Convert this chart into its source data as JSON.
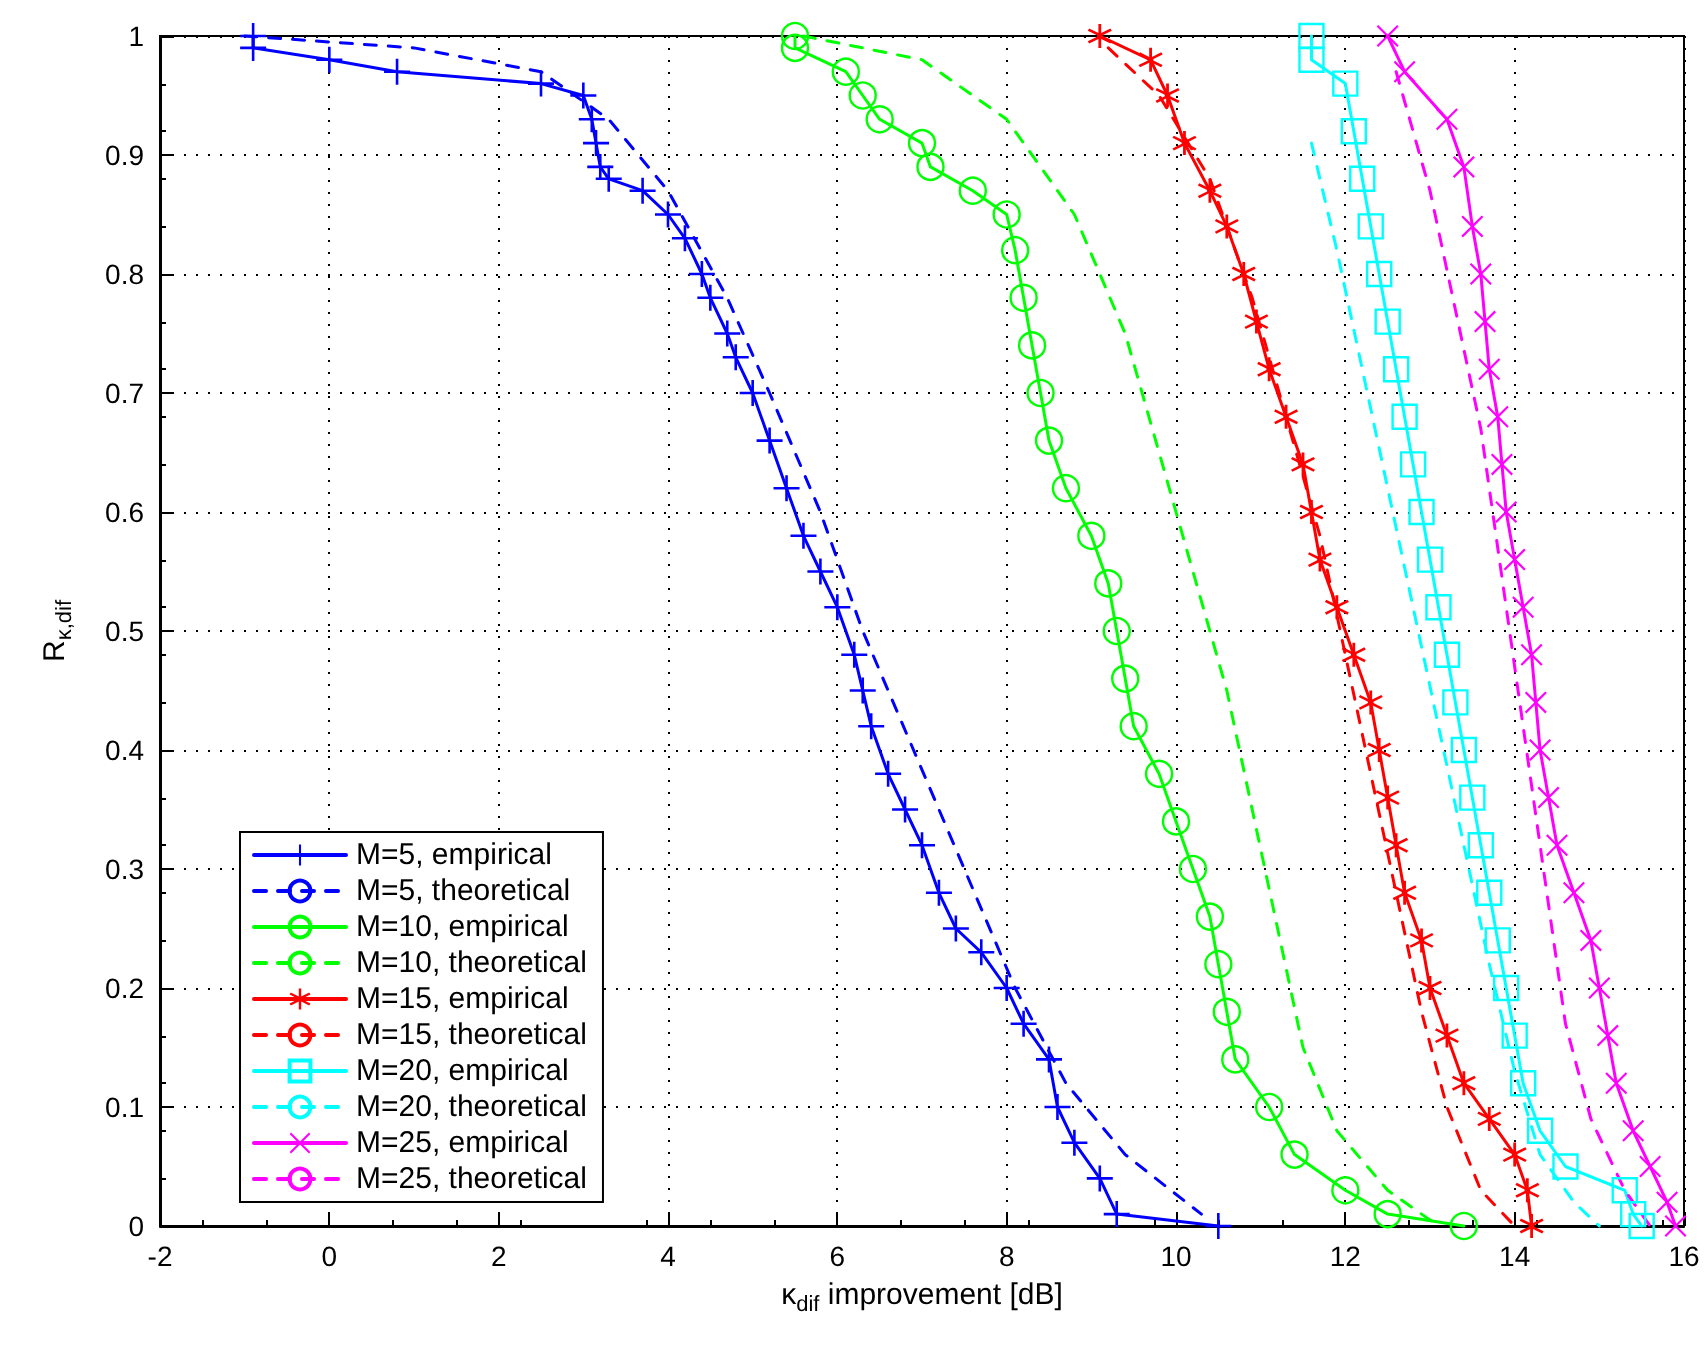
{
  "chart_data": {
    "type": "line",
    "xlabel": "κ$_{dif}$ improvement [dB]",
    "ylabel": "R$_{κ,dif}$",
    "xlim": [
      -2,
      16
    ],
    "xticks": [
      -2,
      0,
      2,
      4,
      6,
      8,
      10,
      12,
      14,
      16
    ],
    "ylim": [
      0,
      1
    ],
    "yticks": [
      0,
      0.1,
      0.2,
      0.3,
      0.4,
      0.5,
      0.6,
      0.7,
      0.8,
      0.9,
      1
    ],
    "grid": true,
    "legend": "bottom left",
    "series": [
      {
        "name": "M=5, empirical",
        "color": "#0000ff",
        "marker": "plus",
        "line_style": "solid",
        "x": [
          -0.9,
          -0.9,
          0,
          0.8,
          2.5,
          3.0,
          3.1,
          3.15,
          3.2,
          3.3,
          3.7,
          4.0,
          4.2,
          4.4,
          4.5,
          4.7,
          4.8,
          5.0,
          5.2,
          5.4,
          5.6,
          5.8,
          6.0,
          6.2,
          6.3,
          6.4,
          6.6,
          6.8,
          7.0,
          7.2,
          7.4,
          7.7,
          8.0,
          8.2,
          8.5,
          8.6,
          8.8,
          9.1,
          9.3,
          10.5
        ],
        "values": [
          1.0,
          0.99,
          0.98,
          0.97,
          0.96,
          0.95,
          0.93,
          0.91,
          0.89,
          0.88,
          0.87,
          0.85,
          0.83,
          0.8,
          0.78,
          0.75,
          0.73,
          0.7,
          0.66,
          0.62,
          0.58,
          0.55,
          0.52,
          0.48,
          0.45,
          0.42,
          0.38,
          0.35,
          0.32,
          0.28,
          0.25,
          0.23,
          0.2,
          0.17,
          0.14,
          0.1,
          0.07,
          0.04,
          0.01,
          0.0
        ]
      },
      {
        "name": "M=5, theoretical",
        "color": "#0000ff",
        "marker": "none",
        "line_style": "dashed",
        "x": [
          -1,
          1,
          2.5,
          3.3,
          4.0,
          4.7,
          5.2,
          5.8,
          6.3,
          6.9,
          7.5,
          8.1,
          8.7,
          9.4,
          10.3
        ],
        "values": [
          1,
          0.99,
          0.97,
          0.93,
          0.87,
          0.78,
          0.7,
          0.6,
          0.5,
          0.4,
          0.3,
          0.2,
          0.12,
          0.06,
          0.01
        ]
      },
      {
        "name": "M=10, empirical",
        "color": "#00ff00",
        "marker": "circle",
        "line_style": "solid",
        "x": [
          5.5,
          5.5,
          6.1,
          6.3,
          6.5,
          7.0,
          7.1,
          7.6,
          8.0,
          8.1,
          8.2,
          8.3,
          8.4,
          8.5,
          8.7,
          9.0,
          9.2,
          9.3,
          9.4,
          9.5,
          9.8,
          10.0,
          10.2,
          10.4,
          10.5,
          10.6,
          10.7,
          11.1,
          11.4,
          12.0,
          12.5,
          13.4
        ],
        "values": [
          1.0,
          0.99,
          0.97,
          0.95,
          0.93,
          0.91,
          0.89,
          0.87,
          0.85,
          0.82,
          0.78,
          0.74,
          0.7,
          0.66,
          0.62,
          0.58,
          0.54,
          0.5,
          0.46,
          0.42,
          0.38,
          0.34,
          0.3,
          0.26,
          0.22,
          0.18,
          0.14,
          0.1,
          0.06,
          0.03,
          0.01,
          0.0
        ]
      },
      {
        "name": "M=10, theoretical",
        "color": "#00ff00",
        "marker": "none",
        "line_style": "dashed",
        "x": [
          5.6,
          7,
          8,
          8.8,
          9.4,
          9.8,
          10.2,
          10.6,
          10.9,
          11.2,
          11.5,
          11.9,
          12.5,
          13.1
        ],
        "values": [
          1.0,
          0.98,
          0.93,
          0.85,
          0.75,
          0.65,
          0.55,
          0.45,
          0.35,
          0.25,
          0.15,
          0.08,
          0.03,
          0.0
        ]
      },
      {
        "name": "M=15, empirical",
        "color": "#ff0000",
        "marker": "star",
        "line_style": "solid",
        "x": [
          9.1,
          9.7,
          9.9,
          10.1,
          10.4,
          10.6,
          10.8,
          10.95,
          11.1,
          11.3,
          11.5,
          11.6,
          11.7,
          11.9,
          12.1,
          12.3,
          12.4,
          12.5,
          12.6,
          12.7,
          12.9,
          13.0,
          13.2,
          13.4,
          13.7,
          14.0,
          14.15,
          14.2
        ],
        "values": [
          1.0,
          0.98,
          0.95,
          0.91,
          0.87,
          0.84,
          0.8,
          0.76,
          0.72,
          0.68,
          0.64,
          0.6,
          0.56,
          0.52,
          0.48,
          0.44,
          0.4,
          0.36,
          0.32,
          0.28,
          0.24,
          0.2,
          0.16,
          0.12,
          0.09,
          0.06,
          0.03,
          0.0
        ]
      },
      {
        "name": "M=15, theoretical",
        "color": "#ff0000",
        "marker": "none",
        "line_style": "dashed",
        "x": [
          9.2,
          9.8,
          10.4,
          10.9,
          11.3,
          11.7,
          12.0,
          12.3,
          12.6,
          12.9,
          13.2,
          13.6,
          14.0
        ],
        "values": [
          0.99,
          0.95,
          0.88,
          0.78,
          0.68,
          0.58,
          0.48,
          0.38,
          0.28,
          0.18,
          0.1,
          0.03,
          0.0
        ]
      },
      {
        "name": "M=20, empirical",
        "color": "#00ffff",
        "marker": "square",
        "line_style": "solid",
        "x": [
          11.6,
          11.6,
          12.0,
          12.1,
          12.2,
          12.3,
          12.4,
          12.5,
          12.6,
          12.7,
          12.8,
          12.9,
          13.0,
          13.1,
          13.2,
          13.3,
          13.4,
          13.5,
          13.6,
          13.7,
          13.8,
          13.9,
          14.0,
          14.1,
          14.3,
          14.6,
          15.3,
          15.4,
          15.5
        ],
        "values": [
          1.0,
          0.98,
          0.96,
          0.92,
          0.88,
          0.84,
          0.8,
          0.76,
          0.72,
          0.68,
          0.64,
          0.6,
          0.56,
          0.52,
          0.48,
          0.44,
          0.4,
          0.36,
          0.32,
          0.28,
          0.24,
          0.2,
          0.16,
          0.12,
          0.08,
          0.05,
          0.03,
          0.01,
          0.0
        ]
      },
      {
        "name": "M=20, theoretical",
        "color": "#00ffff",
        "marker": "none",
        "line_style": "dashed",
        "x": [
          11.6,
          11.9,
          12.2,
          12.5,
          12.8,
          13.1,
          13.4,
          13.7,
          14.0,
          14.3,
          14.7,
          15.0
        ],
        "values": [
          0.91,
          0.82,
          0.72,
          0.62,
          0.52,
          0.42,
          0.32,
          0.22,
          0.13,
          0.06,
          0.02,
          0.0
        ]
      },
      {
        "name": "M=25, empirical",
        "color": "#ff00ff",
        "marker": "cross",
        "line_style": "solid",
        "x": [
          12.5,
          12.7,
          13.2,
          13.4,
          13.5,
          13.6,
          13.65,
          13.7,
          13.8,
          13.85,
          13.9,
          14.0,
          14.1,
          14.2,
          14.25,
          14.3,
          14.4,
          14.5,
          14.7,
          14.9,
          15.0,
          15.1,
          15.2,
          15.4,
          15.6,
          15.8,
          15.9
        ],
        "values": [
          1.0,
          0.97,
          0.93,
          0.89,
          0.84,
          0.8,
          0.76,
          0.72,
          0.68,
          0.64,
          0.6,
          0.56,
          0.52,
          0.48,
          0.44,
          0.4,
          0.36,
          0.32,
          0.28,
          0.24,
          0.2,
          0.16,
          0.12,
          0.08,
          0.05,
          0.02,
          0.0
        ]
      },
      {
        "name": "M=25, theoretical",
        "color": "#ff00ff",
        "marker": "none",
        "line_style": "dashed",
        "x": [
          12.6,
          13.0,
          13.3,
          13.6,
          13.8,
          14.0,
          14.2,
          14.4,
          14.6,
          14.9,
          15.3,
          15.6
        ],
        "values": [
          0.97,
          0.87,
          0.77,
          0.67,
          0.57,
          0.47,
          0.37,
          0.27,
          0.17,
          0.09,
          0.03,
          0.0
        ]
      }
    ]
  }
}
